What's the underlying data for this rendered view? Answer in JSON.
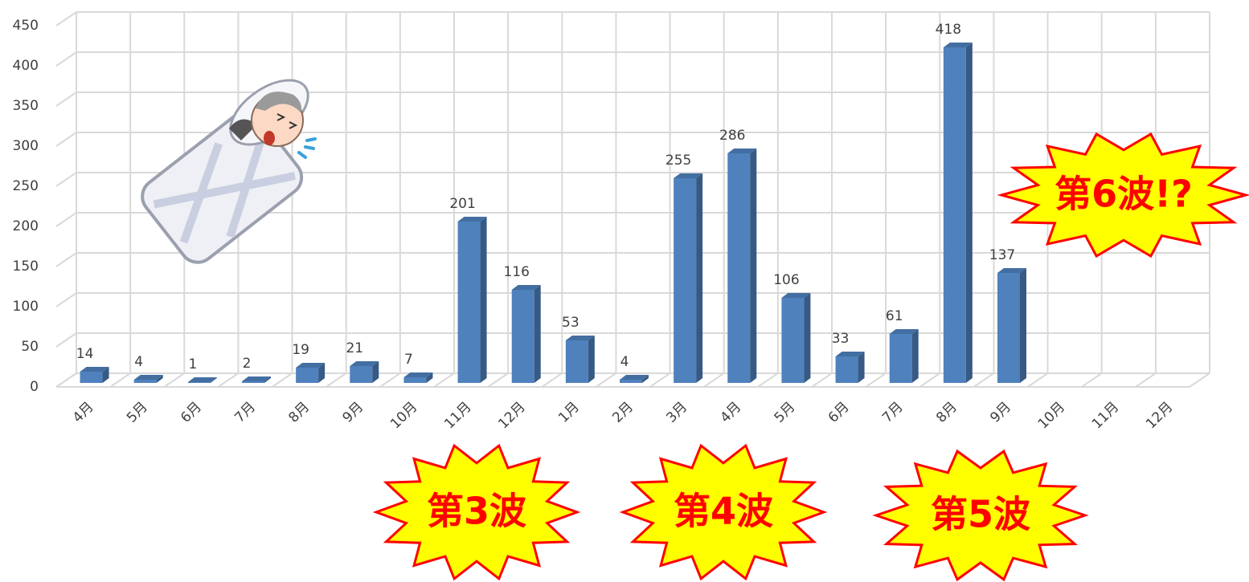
{
  "chart_data": {
    "type": "bar3d",
    "categories": [
      "4月",
      "5月",
      "6月",
      "7月",
      "8月",
      "9月",
      "10月",
      "11月",
      "12月",
      "1月",
      "2月",
      "3月",
      "4月",
      "5月",
      "6月",
      "7月",
      "8月",
      "9月",
      "10月",
      "11月",
      "12月"
    ],
    "values": [
      14,
      4,
      1,
      2,
      19,
      21,
      7,
      201,
      116,
      53,
      4,
      255,
      286,
      106,
      33,
      61,
      418,
      137,
      null,
      null,
      null
    ],
    "color": "#4f81bd",
    "ylim": [
      0,
      450
    ],
    "yticks": [
      0,
      50,
      100,
      150,
      200,
      250,
      300,
      350,
      400,
      450
    ],
    "grid": true,
    "annotations": [
      "第3波",
      "第4波",
      "第5波",
      "第6波!?"
    ]
  }
}
